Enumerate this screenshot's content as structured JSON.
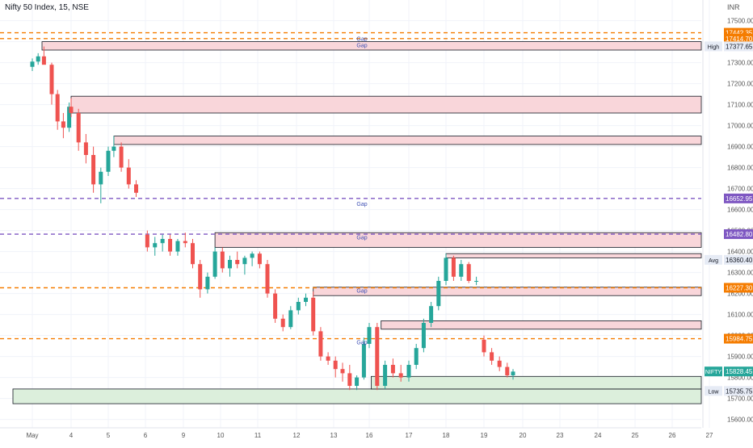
{
  "header": {
    "symbol_title": "Nifty 50 Index, 15, NSE",
    "currency": "INR"
  },
  "chart_data": {
    "type": "candlestick",
    "title": "Nifty 50 Index, 15, NSE",
    "y_axis": {
      "min": 15560,
      "max": 17560,
      "ticks": [
        17500,
        17400,
        17300,
        17200,
        17100,
        17000,
        16900,
        16800,
        16700,
        16600,
        16500,
        16400,
        16300,
        16200,
        16100,
        16000,
        15900,
        15800,
        15700,
        15600
      ],
      "position": "right"
    },
    "x_axis": {
      "tick_labels": [
        "May",
        "4",
        "5",
        "6",
        "9",
        "10",
        "11",
        "12",
        "13",
        "16",
        "17",
        "18",
        "19",
        "20",
        "23",
        "24",
        "25",
        "26",
        "27"
      ]
    },
    "price_labels": [
      {
        "value": 17442.35,
        "text": "17442.35",
        "color": "#f57c00"
      },
      {
        "value": 17414.7,
        "text": "17414.70",
        "color": "#f57c00"
      },
      {
        "value": 17377.65,
        "text": "17377.65",
        "color": "#e6ebf5",
        "tag": "High"
      },
      {
        "value": 16652.95,
        "text": "16652.95",
        "color": "#7e57c2"
      },
      {
        "value": 16482.8,
        "text": "16482.80",
        "color": "#7e57c2"
      },
      {
        "value": 16360.4,
        "text": "16360.40",
        "color": "#e6ebf5",
        "tag": "Avg"
      },
      {
        "value": 16227.3,
        "text": "16227.30",
        "color": "#f57c00"
      },
      {
        "value": 15984.75,
        "text": "15984.75",
        "color": "#f57c00"
      },
      {
        "value": 15828.45,
        "text": "15828.45",
        "color": "#26a69a",
        "tag": "NIFTY"
      },
      {
        "value": 15735.75,
        "text": "15735.75",
        "color": "#e6ebf5",
        "tag": "Low"
      }
    ],
    "dashed_levels": [
      {
        "value": 17442.35,
        "color": "#f57c00"
      },
      {
        "value": 17414.7,
        "color": "#f57c00"
      },
      {
        "value": 16652.95,
        "color": "#7e57c2"
      },
      {
        "value": 16482.8,
        "color": "#7e57c2"
      },
      {
        "value": 16227.3,
        "color": "#f57c00"
      },
      {
        "value": 15984.75,
        "color": "#f57c00"
      }
    ],
    "zones": [
      {
        "type": "supply",
        "top": 17400,
        "bottom": 17360,
        "start_day": 0.25
      },
      {
        "type": "supply",
        "top": 17140,
        "bottom": 17060,
        "start_day": 1.0
      },
      {
        "type": "supply",
        "top": 16950,
        "bottom": 16910,
        "start_day": 2.15
      },
      {
        "type": "supply",
        "top": 16490,
        "bottom": 16420,
        "start_day": 4.85
      },
      {
        "type": "supply",
        "top": 16390,
        "bottom": 16370,
        "start_day": 11.0
      },
      {
        "type": "supply",
        "top": 16230,
        "bottom": 16190,
        "start_day": 7.45
      },
      {
        "type": "supply",
        "top": 16070,
        "bottom": 16030,
        "start_day": 9.3
      },
      {
        "type": "demand",
        "top": 15745,
        "bottom": 15675,
        "start_day": -0.5
      },
      {
        "type": "demand",
        "top": 15805,
        "bottom": 15745,
        "start_day": 9.05
      }
    ],
    "gap_labels": [
      {
        "text": "Gap",
        "value": 17415
      },
      {
        "text": "Gap",
        "value": 17385
      },
      {
        "text": "Gap",
        "value": 16630
      },
      {
        "text": "Gap",
        "value": 16470
      },
      {
        "text": "Gap",
        "value": 16215
      },
      {
        "text": "Gap",
        "value": 15970
      }
    ],
    "candles": [
      [
        "0.00",
        17280,
        17320,
        17260,
        17305
      ],
      [
        "0.15",
        17305,
        17345,
        17290,
        17330
      ],
      [
        "0.30",
        17330,
        17377,
        17300,
        17290
      ],
      [
        "0.50",
        17290,
        17300,
        17100,
        17150
      ],
      [
        "0.65",
        17150,
        17170,
        16980,
        17020
      ],
      [
        "0.80",
        17020,
        17060,
        16940,
        16990
      ],
      [
        "0.95",
        16990,
        17110,
        16970,
        17090
      ],
      [
        "1.00",
        17090,
        17130,
        17040,
        17060
      ],
      [
        "1.20",
        17060,
        17080,
        16880,
        16920
      ],
      [
        "1.40",
        16920,
        16960,
        16820,
        16860
      ],
      [
        "1.60",
        16860,
        16900,
        16680,
        16720
      ],
      [
        "1.80",
        16720,
        16800,
        16630,
        16780
      ],
      [
        "2.00",
        16780,
        16900,
        16760,
        16880
      ],
      [
        "2.15",
        16880,
        16950,
        16850,
        16900
      ],
      [
        "2.35",
        16900,
        16920,
        16780,
        16800
      ],
      [
        "2.55",
        16800,
        16840,
        16700,
        16720
      ],
      [
        "2.75",
        16720,
        16740,
        16660,
        16680
      ],
      [
        "3.05",
        16480,
        16500,
        16400,
        16420
      ],
      [
        "3.25",
        16420,
        16470,
        16380,
        16440
      ],
      [
        "3.45",
        16440,
        16480,
        16400,
        16460
      ],
      [
        "3.65",
        16460,
        16480,
        16380,
        16400
      ],
      [
        "3.85",
        16400,
        16460,
        16380,
        16450
      ],
      [
        "4.05",
        16450,
        16490,
        16420,
        16440
      ],
      [
        "4.25",
        16440,
        16460,
        16320,
        16340
      ],
      [
        "4.45",
        16340,
        16360,
        16180,
        16220
      ],
      [
        "4.65",
        16220,
        16300,
        16200,
        16280
      ],
      [
        "4.85",
        16280,
        16420,
        16270,
        16400
      ],
      [
        "5.05",
        16400,
        16420,
        16300,
        16320
      ],
      [
        "5.25",
        16320,
        16380,
        16280,
        16360
      ],
      [
        "5.45",
        16360,
        16400,
        16320,
        16340
      ],
      [
        "5.65",
        16340,
        16380,
        16290,
        16370
      ],
      [
        "5.85",
        16370,
        16400,
        16330,
        16390
      ],
      [
        "6.05",
        16390,
        16400,
        16320,
        16340
      ],
      [
        "6.25",
        16340,
        16360,
        16180,
        16200
      ],
      [
        "6.45",
        16200,
        16220,
        16060,
        16080
      ],
      [
        "6.65",
        16080,
        16100,
        16020,
        16040
      ],
      [
        "6.85",
        16040,
        16140,
        16030,
        16120
      ],
      [
        "7.05",
        16120,
        16180,
        16100,
        16160
      ],
      [
        "7.25",
        16160,
        16200,
        16140,
        16180
      ],
      [
        "7.45",
        16180,
        16210,
        16000,
        16020
      ],
      [
        "7.65",
        16020,
        16040,
        15880,
        15900
      ],
      [
        "7.85",
        15900,
        15920,
        15860,
        15880
      ],
      [
        "8.05",
        15880,
        15900,
        15800,
        15840
      ],
      [
        "8.25",
        15840,
        15870,
        15780,
        15820
      ],
      [
        "8.45",
        15820,
        15860,
        15740,
        15760
      ],
      [
        "8.65",
        15760,
        15810,
        15740,
        15800
      ],
      [
        "8.85",
        15800,
        15990,
        15790,
        15960
      ],
      [
        "9.00",
        15960,
        16060,
        15940,
        16040
      ],
      [
        "9.20",
        16040,
        16060,
        15740,
        15760
      ],
      [
        "9.40",
        15760,
        15880,
        15745,
        15860
      ],
      [
        "9.60",
        15860,
        15890,
        15800,
        15820
      ],
      [
        "9.80",
        15820,
        15860,
        15780,
        15800
      ],
      [
        "10.00",
        15800,
        15880,
        15780,
        15860
      ],
      [
        "10.20",
        15860,
        15960,
        15840,
        15940
      ],
      [
        "10.40",
        15940,
        16080,
        15920,
        16060
      ],
      [
        "10.60",
        16060,
        16160,
        16040,
        16140
      ],
      [
        "10.80",
        16140,
        16280,
        16120,
        16260
      ],
      [
        "11.00",
        16260,
        16390,
        16240,
        16370
      ],
      [
        "11.20",
        16370,
        16380,
        16260,
        16280
      ],
      [
        "11.40",
        16280,
        16360,
        16260,
        16340
      ],
      [
        "11.60",
        16340,
        16350,
        16250,
        16260
      ],
      [
        "11.80",
        16260,
        16280,
        16240,
        16260
      ],
      [
        "12.00",
        15980,
        16000,
        15900,
        15920
      ],
      [
        "12.20",
        15920,
        15940,
        15860,
        15880
      ],
      [
        "12.40",
        15880,
        15900,
        15830,
        15850
      ],
      [
        "12.60",
        15850,
        15870,
        15800,
        15810
      ],
      [
        "12.75",
        15810,
        15840,
        15790,
        15828
      ]
    ]
  }
}
